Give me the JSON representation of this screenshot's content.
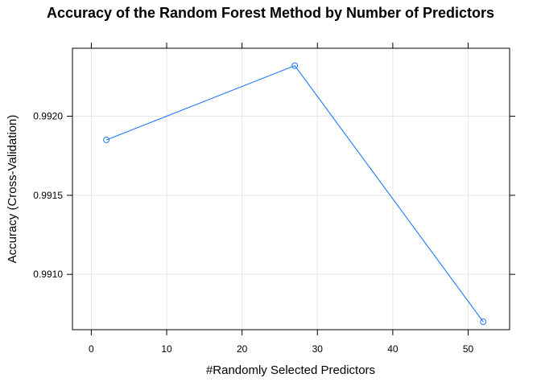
{
  "chart_data": {
    "type": "line",
    "title": "Accuracy of the Random Forest Method by Number of Predictors",
    "xlabel": "#Randomly Selected Predictors",
    "ylabel": "Accuracy (Cross-Validation)",
    "xlim": [
      -2.5,
      55.5
    ],
    "ylim": [
      0.99065,
      0.99243
    ],
    "x_ticks": [
      0,
      10,
      20,
      30,
      40,
      50
    ],
    "x_tick_labels": [
      "0",
      "10",
      "20",
      "30",
      "40",
      "50"
    ],
    "y_ticks": [
      0.991,
      0.9915,
      0.992
    ],
    "y_tick_labels": [
      "0.9910",
      "0.9915",
      "0.9920"
    ],
    "grid": true,
    "series": [
      {
        "x": [
          2,
          27,
          52
        ],
        "values": [
          0.99185,
          0.99232,
          0.9907
        ],
        "color": "#1f78ff"
      }
    ]
  }
}
